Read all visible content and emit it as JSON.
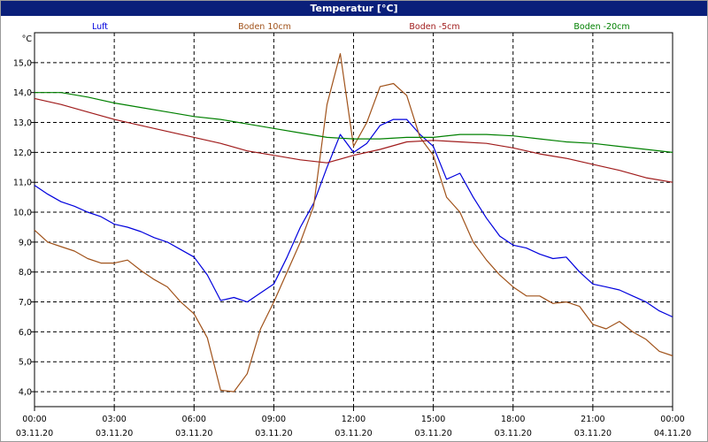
{
  "window": {
    "title": "Temperatur [°C]"
  },
  "chart_data": {
    "type": "line",
    "title": "Temperatur [°C]",
    "ylabel": "°C",
    "ylim": [
      3.5,
      16.0
    ],
    "yticks": [
      "4,0",
      "5,0",
      "6,0",
      "7,0",
      "8,0",
      "9,0",
      "10,0",
      "11,0",
      "12,0",
      "13,0",
      "14,0",
      "15,0"
    ],
    "xlim": [
      0,
      24
    ],
    "xticks": [
      {
        "time": "00:00",
        "date": "03.11.20"
      },
      {
        "time": "03:00",
        "date": "03.11.20"
      },
      {
        "time": "06:00",
        "date": "03.11.20"
      },
      {
        "time": "09:00",
        "date": "03.11.20"
      },
      {
        "time": "12:00",
        "date": "03.11.20"
      },
      {
        "time": "15:00",
        "date": "03.11.20"
      },
      {
        "time": "18:00",
        "date": "03.11.20"
      },
      {
        "time": "21:00",
        "date": "03.11.20"
      },
      {
        "time": "00:00",
        "date": "04.11.20"
      }
    ],
    "grid": true,
    "legend_position": "top",
    "series": [
      {
        "name": "Luft",
        "color": "#0000dd",
        "x": [
          0,
          0.5,
          1,
          1.5,
          2,
          2.5,
          3,
          3.5,
          4,
          4.5,
          5,
          5.5,
          6,
          6.5,
          7,
          7.5,
          8,
          8.5,
          9,
          9.5,
          10,
          10.5,
          11,
          11.5,
          12,
          12.5,
          13,
          13.5,
          14,
          14.5,
          15,
          15.5,
          16,
          16.5,
          17,
          17.5,
          18,
          18.5,
          19,
          19.5,
          20,
          20.5,
          21,
          21.5,
          22,
          22.5,
          23,
          23.5,
          24
        ],
        "values": [
          10.9,
          10.6,
          10.35,
          10.2,
          10.0,
          9.85,
          9.6,
          9.5,
          9.35,
          9.15,
          9.0,
          8.75,
          8.5,
          7.9,
          7.05,
          7.15,
          7.0,
          7.3,
          7.6,
          8.5,
          9.5,
          10.3,
          11.5,
          12.6,
          12.0,
          12.3,
          12.9,
          13.1,
          13.1,
          12.6,
          12.2,
          11.1,
          11.3,
          10.5,
          9.8,
          9.2,
          8.9,
          8.8,
          8.6,
          8.45,
          8.5,
          8.0,
          7.6,
          7.5,
          7.4,
          7.2,
          7.0,
          6.7,
          6.5
        ]
      },
      {
        "name": "Boden 10cm",
        "color": "#a0521a",
        "x": [
          0,
          0.5,
          1,
          1.5,
          2,
          2.5,
          3,
          3.5,
          4,
          4.5,
          5,
          5.5,
          6,
          6.5,
          7,
          7.5,
          8,
          8.5,
          9,
          9.5,
          10,
          10.5,
          11,
          11.5,
          12,
          12.5,
          13,
          13.5,
          14,
          14.5,
          15,
          15.5,
          16,
          16.5,
          17,
          17.5,
          18,
          18.5,
          19,
          19.5,
          20,
          20.5,
          21,
          21.5,
          22,
          22.5,
          23,
          23.5,
          24
        ],
        "values": [
          9.4,
          9.0,
          8.85,
          8.7,
          8.45,
          8.3,
          8.3,
          8.4,
          8.05,
          7.75,
          7.5,
          7.0,
          6.6,
          5.8,
          4.05,
          4.0,
          4.6,
          6.1,
          7.0,
          8.0,
          9.0,
          10.2,
          13.6,
          15.3,
          12.2,
          13.0,
          14.2,
          14.3,
          13.9,
          12.5,
          11.9,
          10.5,
          10.0,
          9.0,
          8.4,
          7.9,
          7.5,
          7.2,
          7.2,
          6.95,
          7.0,
          6.85,
          6.25,
          6.1,
          6.35,
          6.0,
          5.75,
          5.35,
          5.2
        ]
      },
      {
        "name": "Boden -5cm",
        "color": "#a01c1c",
        "x": [
          0,
          1,
          2,
          3,
          4,
          5,
          6,
          7,
          8,
          9,
          10,
          11,
          12,
          13,
          14,
          15,
          16,
          17,
          18,
          19,
          20,
          21,
          22,
          23,
          24
        ],
        "values": [
          13.8,
          13.6,
          13.35,
          13.1,
          12.9,
          12.7,
          12.5,
          12.3,
          12.05,
          11.9,
          11.75,
          11.65,
          11.9,
          12.1,
          12.35,
          12.4,
          12.35,
          12.3,
          12.15,
          11.95,
          11.8,
          11.6,
          11.4,
          11.15,
          11.0
        ]
      },
      {
        "name": "Boden -20cm",
        "color": "#008000",
        "x": [
          0,
          1,
          2,
          3,
          4,
          5,
          6,
          7,
          8,
          9,
          10,
          11,
          12,
          13,
          14,
          15,
          16,
          17,
          18,
          19,
          20,
          21,
          22,
          23,
          24
        ],
        "values": [
          14.0,
          14.0,
          13.85,
          13.65,
          13.5,
          13.35,
          13.2,
          13.1,
          12.95,
          12.8,
          12.65,
          12.5,
          12.45,
          12.45,
          12.5,
          12.5,
          12.6,
          12.6,
          12.55,
          12.45,
          12.35,
          12.3,
          12.2,
          12.1,
          12.0
        ]
      }
    ]
  }
}
